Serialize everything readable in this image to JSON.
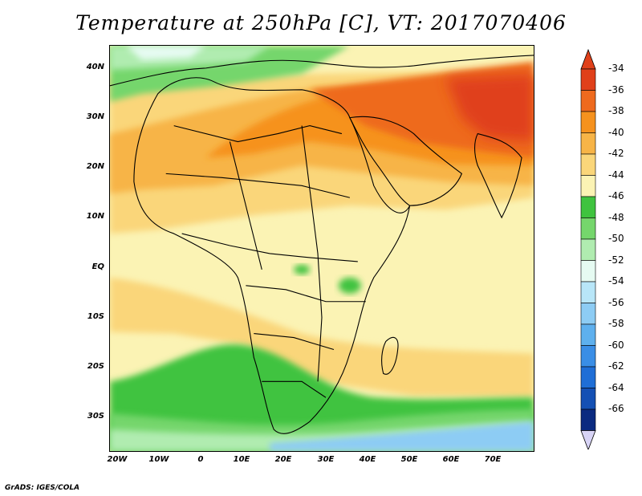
{
  "title": "Temperature at 250hPa [C], VT: 2017070406",
  "footer": "GrADS: IGES/COLA",
  "y_axis_labels": [
    "40N",
    "30N",
    "20N",
    "10N",
    "EQ",
    "10S",
    "20S",
    "30S"
  ],
  "x_axis_labels": [
    "20W",
    "10W",
    "0",
    "10E",
    "20E",
    "30E",
    "40E",
    "50E",
    "60E",
    "70E"
  ],
  "colorbar": {
    "labels": [
      "-34",
      "-36",
      "-38",
      "-40",
      "-42",
      "-44",
      "-46",
      "-48",
      "-50",
      "-52",
      "-54",
      "-56",
      "-58",
      "-60",
      "-62",
      "-64",
      "-66"
    ],
    "colors": [
      "#e0401a",
      "#ee6a1e",
      "#f6921e",
      "#f7b447",
      "#fad67a",
      "#fbf3b4",
      "#3fc33f",
      "#75d66c",
      "#b0ecb0",
      "#e6fbf2",
      "#b8e6f8",
      "#8dccf4",
      "#5eb0ee",
      "#3a8ee6",
      "#1f6ed6",
      "#1450b4",
      "#0a2a80"
    ],
    "end_colors": {
      "top": "#e0401a",
      "bottom": "#d8d4f6"
    }
  },
  "regions": {
    "northeast": "-34 to -36",
    "sahara": "-38 to -40",
    "equatorial": "-42 to -44",
    "southern_africa_band": "-46",
    "south_atlantic_southeast": "-48 to -54"
  }
}
